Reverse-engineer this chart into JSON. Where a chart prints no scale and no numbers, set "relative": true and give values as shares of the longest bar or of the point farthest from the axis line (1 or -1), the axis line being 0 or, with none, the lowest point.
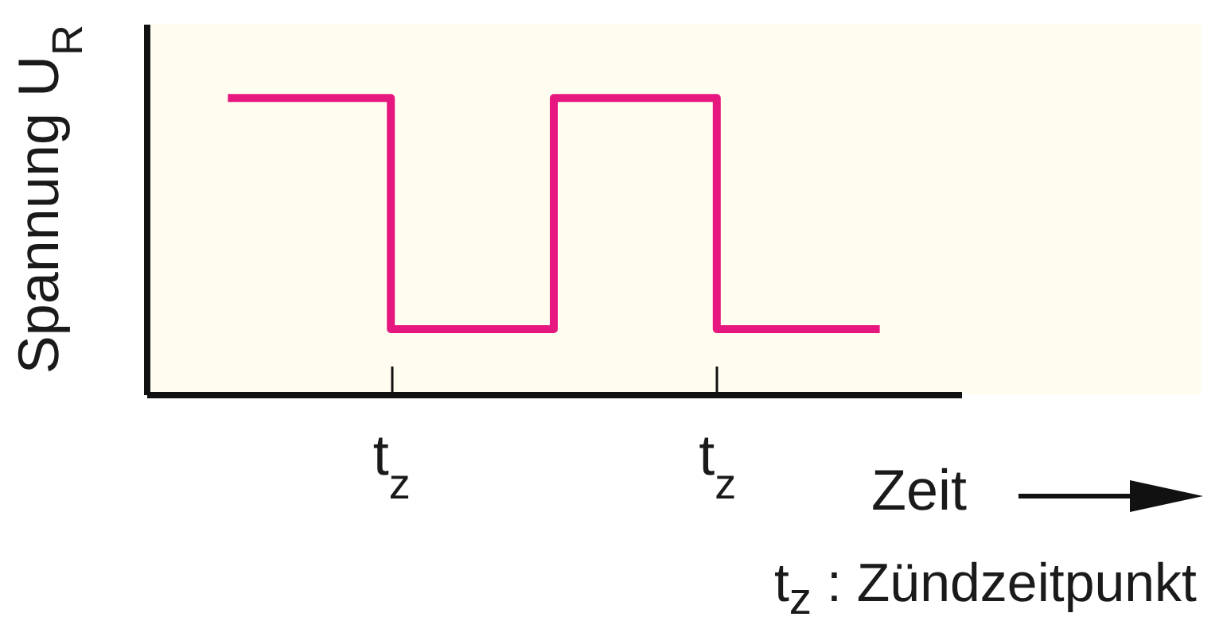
{
  "chart_data": {
    "type": "step",
    "ylabel": "Spannung U$_{R}$",
    "xlabel": "Zeit",
    "annotations": [
      "t$_{z}$ : Zündzeitpunkt"
    ],
    "categories": [
      null,
      "t$_{z}$",
      null,
      "t$_{z}$",
      null
    ],
    "values": [
      1,
      0.22,
      1,
      0.22,
      0.22
    ],
    "relative": true,
    "color": "#e6177f"
  }
}
